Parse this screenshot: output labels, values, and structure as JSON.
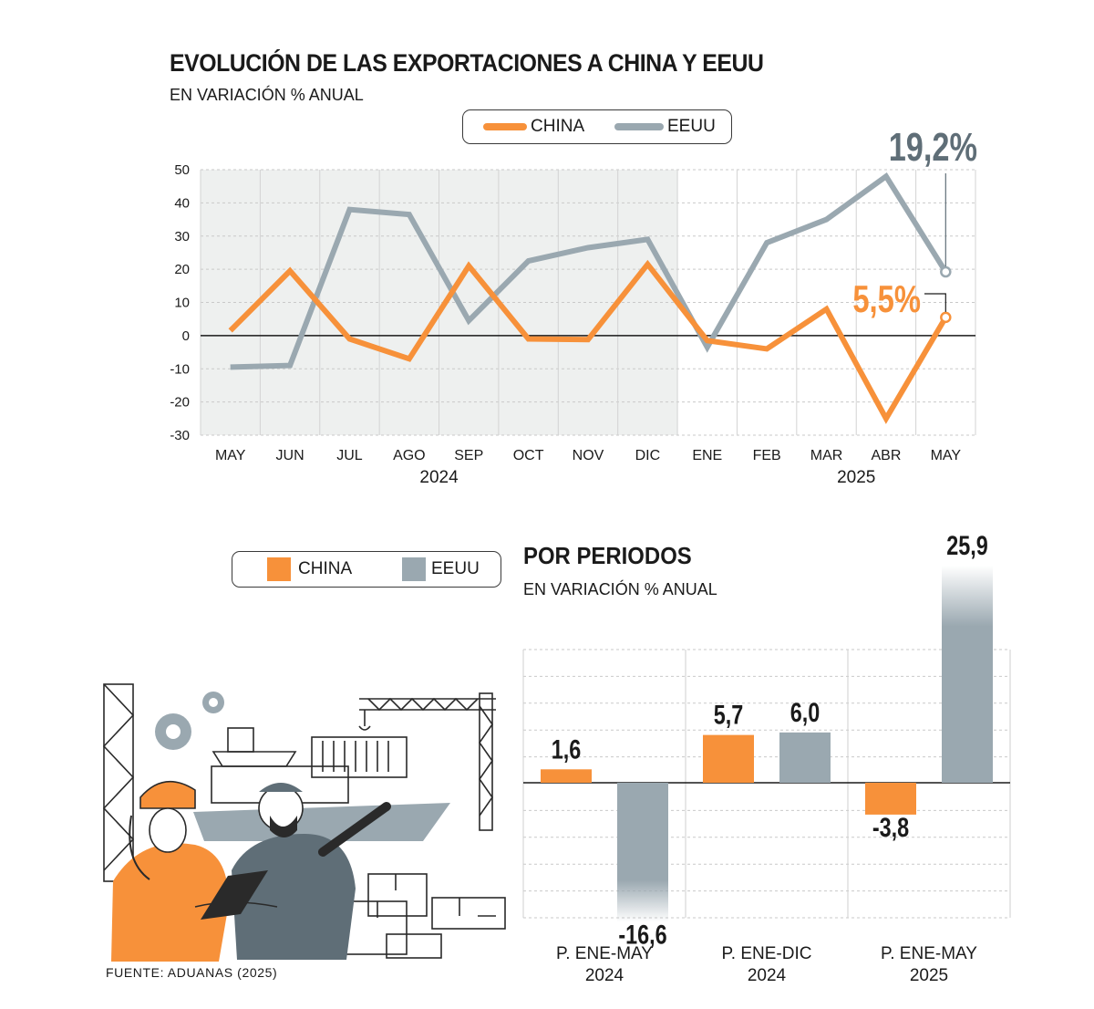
{
  "header": {
    "title": "EVOLUCIÓN DE LAS EXPORTACIONES A CHINA Y EEUU",
    "subtitle": "EN VARIACIÓN % ANUAL"
  },
  "source": "FUENTE: ADUANAS (2025)",
  "colors": {
    "china": "#f7913a",
    "eeuu": "#9aa8b0",
    "eeuu_label": "#5f6e77",
    "shade": "#eef0ef"
  },
  "chart_data": [
    {
      "type": "line",
      "title": "EVOLUCIÓN DE LAS EXPORTACIONES A CHINA Y EEUU",
      "subtitle": "EN VARIACIÓN % ANUAL",
      "categories": [
        "MAY",
        "JUN",
        "JUL",
        "AGO",
        "SEP",
        "OCT",
        "NOV",
        "DIC",
        "ENE",
        "FEB",
        "MAR",
        "ABR",
        "MAY"
      ],
      "year_labels": [
        "2024",
        "2025"
      ],
      "shaded_period": "2024",
      "ylim": [
        -30,
        50
      ],
      "yticks": [
        50,
        40,
        30,
        20,
        10,
        0,
        -10,
        -20,
        -30
      ],
      "grid": true,
      "legend_position": "top",
      "series": [
        {
          "name": "CHINA",
          "color": "#f7913a",
          "values": [
            1.5,
            19.5,
            -1,
            -7,
            21,
            -1,
            -1.2,
            21.5,
            -1.5,
            -4,
            8,
            -25,
            5.5
          ]
        },
        {
          "name": "EEUU",
          "color": "#9aa8b0",
          "values": [
            -9.5,
            -9,
            38,
            36.5,
            4.5,
            22.5,
            26.5,
            29,
            -3.5,
            28,
            35,
            48,
            19.2
          ]
        }
      ],
      "annotations": [
        {
          "series": "EEUU",
          "text": "19,2%"
        },
        {
          "series": "CHINA",
          "text": "5,5%"
        }
      ]
    },
    {
      "type": "bar",
      "title": "POR PERIODOS",
      "subtitle": "EN VARIACIÓN % ANUAL",
      "legend_position": "top-left",
      "categories": [
        {
          "line1": "P. ENE-MAY",
          "line2": "2024"
        },
        {
          "line1": "P. ENE-DIC",
          "line2": "2024"
        },
        {
          "line1": "P. ENE-MAY",
          "line2": "2025"
        }
      ],
      "series": [
        {
          "name": "CHINA",
          "color": "#f7913a",
          "values": [
            1.6,
            5.7,
            -3.8
          ],
          "labels": [
            "1,6",
            "5,7",
            "-3,8"
          ]
        },
        {
          "name": "EEUU",
          "color": "#9aa8b0",
          "values": [
            -16.6,
            6.0,
            25.9
          ],
          "labels": [
            "-16,6",
            "6,0",
            "25,9"
          ]
        }
      ]
    }
  ]
}
